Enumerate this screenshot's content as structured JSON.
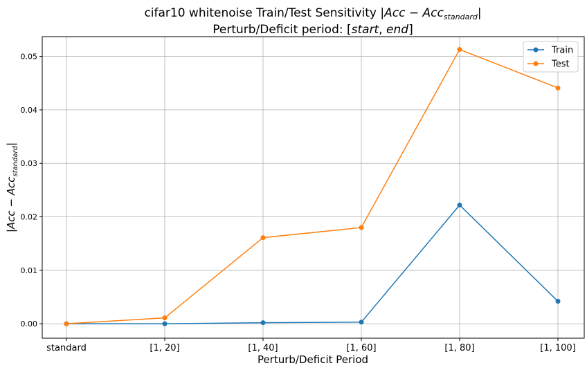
{
  "chart_data": {
    "type": "line",
    "title": {
      "line1_prefix": "cifar10 whitenoise Train/Test Sensitivity |",
      "line1_acc": "Acc",
      "line1_minus": " − ",
      "line1_acc2": "Acc",
      "line1_sub": "standard",
      "line1_suffix": "|",
      "line2_prefix": "Perturb/Deficit period: [",
      "line2_start": "start",
      "line2_sep": ", ",
      "line2_end": "end",
      "line2_suffix": "]"
    },
    "xlabel": "Perturb/Deficit Period",
    "ylabel": {
      "prefix": "|",
      "acc": "Acc",
      "minus": " − ",
      "acc2": "Acc",
      "sub": "standard",
      "suffix": "|"
    },
    "categories": [
      "standard",
      "[1, 20]",
      "[1, 40]",
      "[1, 60]",
      "[1, 80]",
      "[1, 100]"
    ],
    "ylim": [
      -0.0027,
      0.0537
    ],
    "yticks": [
      0.0,
      0.01,
      0.02,
      0.03,
      0.04,
      0.05
    ],
    "ytick_labels": [
      "0.00",
      "0.01",
      "0.02",
      "0.03",
      "0.04",
      "0.05"
    ],
    "grid": true,
    "legend_position": "top-right",
    "series": [
      {
        "name": "Train",
        "color": "#1f77b4",
        "values": [
          0.0,
          0.0,
          0.0002,
          0.0003,
          0.0222,
          0.0042
        ]
      },
      {
        "name": "Test",
        "color": "#ff7f0e",
        "values": [
          0.0,
          0.0011,
          0.0161,
          0.018,
          0.0513,
          0.0441
        ]
      }
    ]
  }
}
